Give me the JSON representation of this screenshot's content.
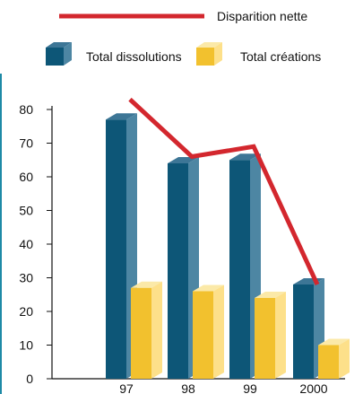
{
  "chart_data": {
    "type": "bar",
    "categories": [
      "97",
      "98",
      "99",
      "2000"
    ],
    "series": [
      {
        "name": "Total dissolutions",
        "values": [
          77,
          64,
          65,
          28
        ],
        "color": "#0d5677",
        "side_color": "#4d86a3",
        "top_color": "#3d7696"
      },
      {
        "name": "Total créations",
        "values": [
          27,
          26,
          24,
          10
        ],
        "color": "#f2c12e",
        "side_color": "#fde08a",
        "top_color": "#fbe9a8"
      }
    ],
    "line_series": {
      "name": "Disparition nette",
      "values": [
        83,
        66,
        69,
        28
      ],
      "color": "#d3272e"
    },
    "yticks": [
      "0",
      "10",
      "20",
      "30",
      "40",
      "50",
      "60",
      "70",
      "80"
    ],
    "ylim": [
      0,
      80
    ],
    "legend_placement": "top",
    "bar_style": "3d",
    "grid": false
  }
}
